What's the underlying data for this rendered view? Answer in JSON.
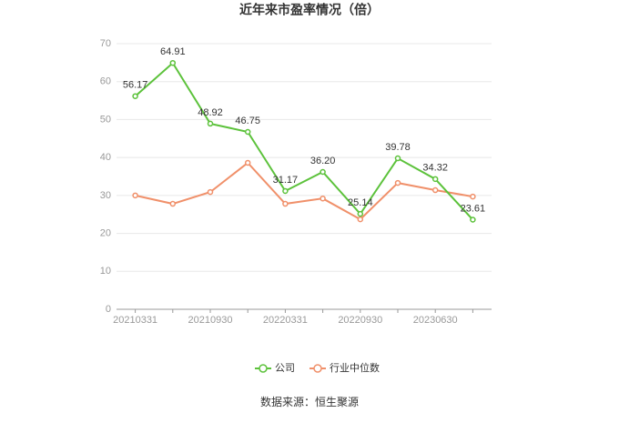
{
  "chart_data": {
    "type": "line",
    "title": "近年来市盈率情况（倍）",
    "categories": [
      "20210331",
      null,
      "20210930",
      null,
      "20220331",
      null,
      "20220930",
      null,
      "20230630",
      null
    ],
    "series": [
      {
        "name": "公司",
        "color": "#5cc23b",
        "values": [
          56.17,
          64.91,
          48.92,
          46.75,
          31.17,
          36.2,
          25.14,
          39.78,
          34.32,
          23.61
        ],
        "value_labels": [
          "56.17",
          "64.91",
          "48.92",
          "46.75",
          "31.17",
          "36.20",
          "25.14",
          "39.78",
          "34.32",
          "23.61"
        ]
      },
      {
        "name": "行业中位数",
        "color": "#f0906a",
        "values": [
          30.0,
          27.8,
          30.9,
          38.6,
          27.8,
          29.2,
          23.7,
          33.3,
          31.4,
          29.7
        ]
      }
    ],
    "ylim": [
      0,
      70
    ],
    "yticks": [
      0,
      10,
      20,
      30,
      40,
      50,
      60,
      70
    ],
    "grid": true,
    "legend": "bottom",
    "source": "数据来源：恒生聚源"
  }
}
